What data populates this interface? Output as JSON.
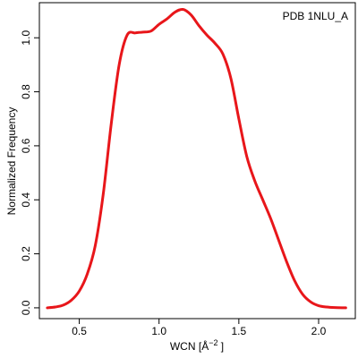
{
  "chart_data": {
    "type": "line",
    "annotation": "PDB 1NLU_A",
    "xlabel": {
      "prefix": "WCN [",
      "unit": "Å",
      "exponent": "−2",
      "suffix": " ]"
    },
    "ylabel": "Normalized Frequency",
    "xlim": [
      0.25,
      2.23
    ],
    "ylim": [
      -0.04,
      1.13
    ],
    "x_ticks": [
      {
        "value": 0.5,
        "label": "0.5"
      },
      {
        "value": 1.0,
        "label": "1.0"
      },
      {
        "value": 1.5,
        "label": "1.5"
      },
      {
        "value": 2.0,
        "label": "2.0"
      }
    ],
    "y_ticks": [
      {
        "value": 0.0,
        "label": "0.0"
      },
      {
        "value": 0.2,
        "label": "0.2"
      },
      {
        "value": 0.4,
        "label": "0.4"
      },
      {
        "value": 0.6,
        "label": "0.6"
      },
      {
        "value": 0.8,
        "label": "0.8"
      },
      {
        "value": 1.0,
        "label": "1.0"
      }
    ],
    "grid": false,
    "legend": "none",
    "series": [
      {
        "color": "#e8161a",
        "x": [
          0.3,
          0.35,
          0.4,
          0.45,
          0.5,
          0.55,
          0.6,
          0.65,
          0.7,
          0.75,
          0.8,
          0.85,
          0.88,
          0.9,
          0.95,
          1.0,
          1.05,
          1.1,
          1.15,
          1.2,
          1.25,
          1.3,
          1.35,
          1.4,
          1.45,
          1.5,
          1.55,
          1.6,
          1.65,
          1.7,
          1.75,
          1.8,
          1.85,
          1.9,
          1.95,
          2.0,
          2.05,
          2.1,
          2.17
        ],
        "y": [
          0.0,
          0.003,
          0.01,
          0.028,
          0.062,
          0.125,
          0.23,
          0.42,
          0.68,
          0.9,
          1.01,
          1.018,
          1.02,
          1.021,
          1.025,
          1.05,
          1.07,
          1.095,
          1.105,
          1.085,
          1.045,
          1.01,
          0.98,
          0.94,
          0.85,
          0.7,
          0.56,
          0.47,
          0.4,
          0.33,
          0.25,
          0.17,
          0.1,
          0.05,
          0.022,
          0.008,
          0.003,
          0.001,
          0.0
        ]
      }
    ]
  }
}
